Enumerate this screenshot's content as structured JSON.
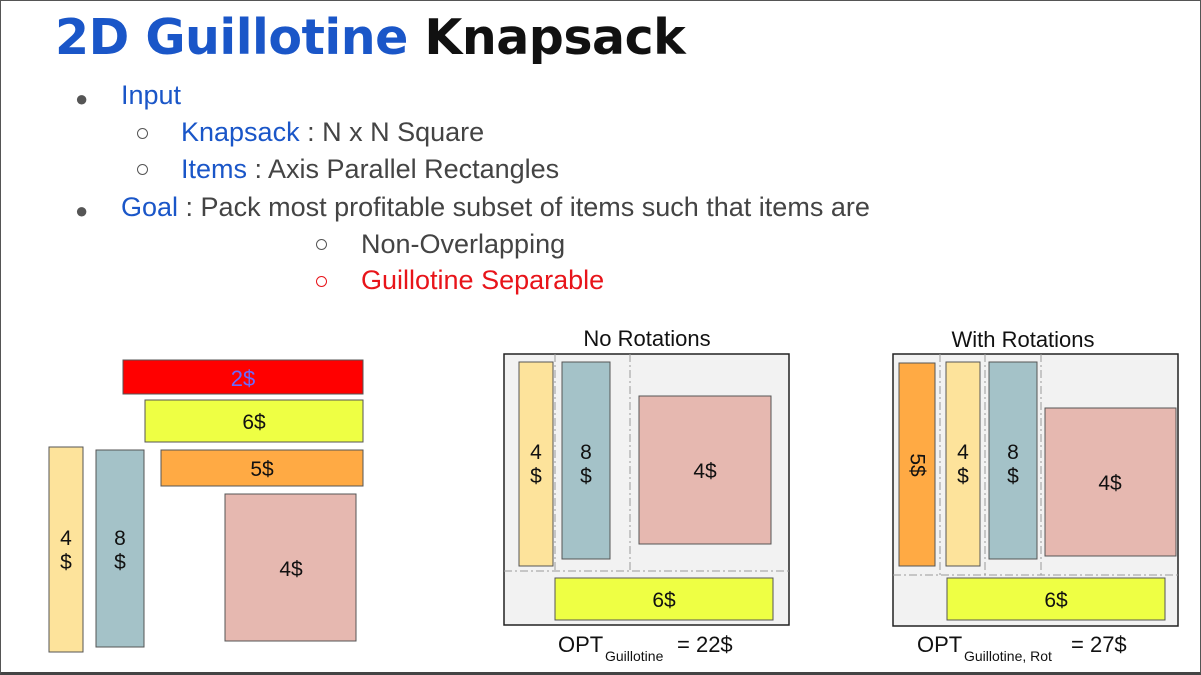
{
  "title": {
    "part1": "2D Guillotine",
    "part2": "Knapsack"
  },
  "bullets": {
    "input": "Input",
    "knapsack_kw": "Knapsack",
    "knapsack_rest": " : N x N Square",
    "items_kw": "Items",
    "items_rest": " : Axis Parallel Rectangles",
    "goal_kw": "Goal",
    "goal_rest": " : Pack most profitable subset of items such that items are",
    "cond1": "Non-Overlapping",
    "cond2": "Guillotine Separable"
  },
  "colors": {
    "red": "#ff0000",
    "yellow": "#eeff44",
    "orange": "#ffaa44",
    "pink": "#e6b8b0",
    "tan": "#fde39b",
    "teal": "#a4c2c8",
    "accent_blue": "#1a56c8",
    "accent_red": "#e8141a"
  },
  "items": {
    "red_label": "2$",
    "yellow_label": "6$",
    "orange_label": "5$",
    "pink_label": "4$",
    "tan_value": "4",
    "tan_unit": "$",
    "teal_value": "8",
    "teal_unit": "$"
  },
  "panel_no_rot": {
    "title": "No Rotations",
    "tan_value": "4",
    "tan_unit": "$",
    "teal_value": "8",
    "teal_unit": "$",
    "pink_label": "4$",
    "yellow_label": "6$",
    "opt_main": "OPT",
    "opt_sub": "Guillotine",
    "opt_value": "= 22$"
  },
  "panel_rot": {
    "title": "With Rotations",
    "orange_label": "5$",
    "tan_value": "4",
    "tan_unit": "$",
    "teal_value": "8",
    "teal_unit": "$",
    "pink_label": "4$",
    "yellow_label": "6$",
    "opt_main": "OPT",
    "opt_sub": "Guillotine, Rot",
    "opt_value": "= 27$"
  }
}
